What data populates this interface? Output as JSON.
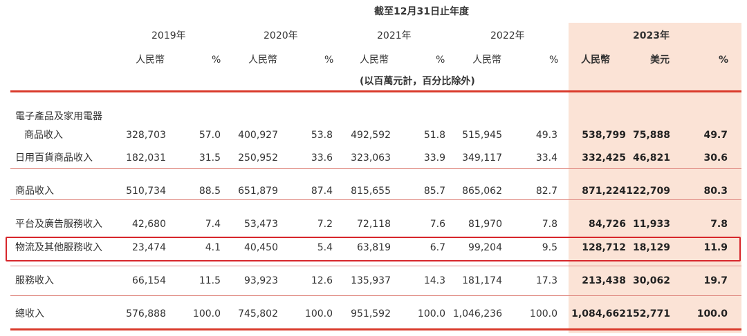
{
  "header": {
    "period": "截至12月31日止年度",
    "years": [
      "2019年",
      "2020年",
      "2021年",
      "2022年",
      "2023年"
    ],
    "units": {
      "rmb": "人民幣",
      "pct": "%",
      "usd": "美元"
    },
    "note": "(以百萬元計，百分比除外)"
  },
  "rows": [
    {
      "label1": "電子產品及家用電器",
      "label": "商品收入",
      "v": [
        "328,703",
        "57.0",
        "400,927",
        "53.8",
        "492,592",
        "51.8",
        "515,945",
        "49.3",
        "538,799",
        "75,888",
        "49.7"
      ]
    },
    {
      "label": "日用百貨商品收入",
      "v": [
        "182,031",
        "31.5",
        "250,952",
        "33.6",
        "323,063",
        "33.9",
        "349,117",
        "33.4",
        "332,425",
        "46,821",
        "30.6"
      ]
    },
    {
      "label": "商品收入",
      "v": [
        "510,734",
        "88.5",
        "651,879",
        "87.4",
        "815,655",
        "85.7",
        "865,062",
        "82.7",
        "871,224",
        "122,709",
        "80.3"
      ]
    },
    {
      "label": "平台及廣告服務收入",
      "v": [
        "42,680",
        "7.4",
        "53,473",
        "7.2",
        "72,118",
        "7.6",
        "81,970",
        "7.8",
        "84,726",
        "11,933",
        "7.8"
      ]
    },
    {
      "label": "物流及其他服務收入",
      "v": [
        "23,474",
        "4.1",
        "40,450",
        "5.4",
        "63,819",
        "6.7",
        "99,204",
        "9.5",
        "128,712",
        "18,129",
        "11.9"
      ]
    },
    {
      "label": "服務收入",
      "v": [
        "66,154",
        "11.5",
        "93,923",
        "12.6",
        "135,937",
        "14.3",
        "181,174",
        "17.3",
        "213,438",
        "30,062",
        "19.7"
      ]
    },
    {
      "label": "總收入",
      "v": [
        "576,888",
        "100.0",
        "745,802",
        "100.0",
        "951,592",
        "100.0",
        "1,046,236",
        "100.0",
        "1,084,662",
        "152,771",
        "100.0"
      ]
    }
  ]
}
